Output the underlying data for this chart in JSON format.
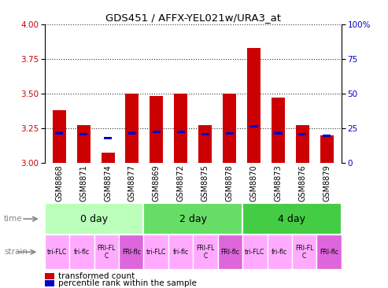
{
  "title": "GDS451 / AFFX-YEL021w/URA3_at",
  "samples": [
    "GSM8868",
    "GSM8871",
    "GSM8874",
    "GSM8877",
    "GSM8869",
    "GSM8872",
    "GSM8875",
    "GSM8878",
    "GSM8870",
    "GSM8873",
    "GSM8876",
    "GSM8879"
  ],
  "red_values": [
    3.38,
    3.27,
    3.07,
    3.5,
    3.48,
    3.5,
    3.27,
    3.5,
    3.83,
    3.47,
    3.27,
    3.2
  ],
  "blue_values": [
    3.215,
    3.205,
    3.18,
    3.215,
    3.225,
    3.225,
    3.205,
    3.21,
    3.265,
    3.215,
    3.205,
    3.195
  ],
  "ylim_left": [
    3.0,
    4.0
  ],
  "ylim_right": [
    0,
    100
  ],
  "yticks_left": [
    3.0,
    3.25,
    3.5,
    3.75,
    4.0
  ],
  "yticks_right": [
    0,
    25,
    50,
    75,
    100
  ],
  "time_groups": [
    {
      "label": "0 day",
      "start": 0,
      "end": 3,
      "color": "#bbffbb"
    },
    {
      "label": "2 day",
      "start": 4,
      "end": 7,
      "color": "#66dd66"
    },
    {
      "label": "4 day",
      "start": 8,
      "end": 11,
      "color": "#44cc44"
    }
  ],
  "strain_labels": [
    "tri-FLC",
    "fri-flc",
    "FRI-FL\nC",
    "FRI-flc",
    "tri-FLC",
    "fri-flc",
    "FRI-FL\nC",
    "FRI-flc",
    "tri-FLC",
    "fri-flc",
    "FRI-FL\nC",
    "FRI-flc"
  ],
  "strain_colors_light": "#ffaaff",
  "strain_colors_dark": "#dd66dd",
  "strain_dark_indices": [
    3,
    7,
    11
  ],
  "bar_color_red": "#cc0000",
  "bar_color_blue": "#0000cc",
  "bar_width": 0.55,
  "background_color": "#ffffff",
  "plot_bg_color": "#ffffff",
  "sample_box_color": "#cccccc",
  "left_axis_color": "#cc0000",
  "right_axis_color": "#0000cc",
  "left_label_color": "#cc0000",
  "right_label_color": "#0000cc"
}
